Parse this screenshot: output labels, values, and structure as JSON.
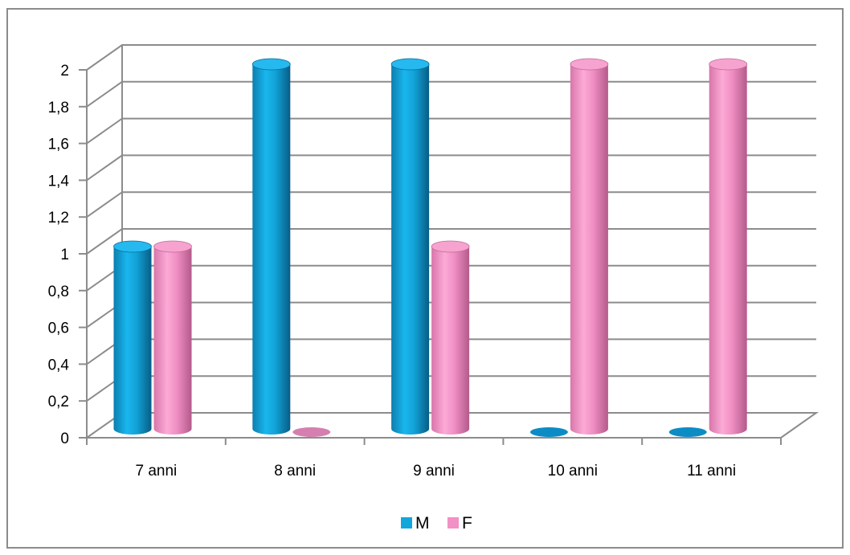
{
  "chart_data": {
    "type": "bar",
    "style": "3d-cylinder",
    "categories": [
      "7 anni",
      "8 anni",
      "9 anni",
      "10 anni",
      "11 anni"
    ],
    "series": [
      {
        "name": "M",
        "color": "#12a7dc",
        "values": [
          1,
          2,
          2,
          0,
          0
        ]
      },
      {
        "name": "F",
        "color": "#f291c5",
        "values": [
          1,
          0,
          1,
          2,
          2
        ]
      }
    ],
    "y_ticks": [
      "0",
      "0,2",
      "0,4",
      "0,6",
      "0,8",
      "1",
      "1,2",
      "1,4",
      "1,6",
      "1,8",
      "2"
    ],
    "ylim": [
      0,
      2
    ],
    "grid": true,
    "legend_position": "bottom"
  }
}
